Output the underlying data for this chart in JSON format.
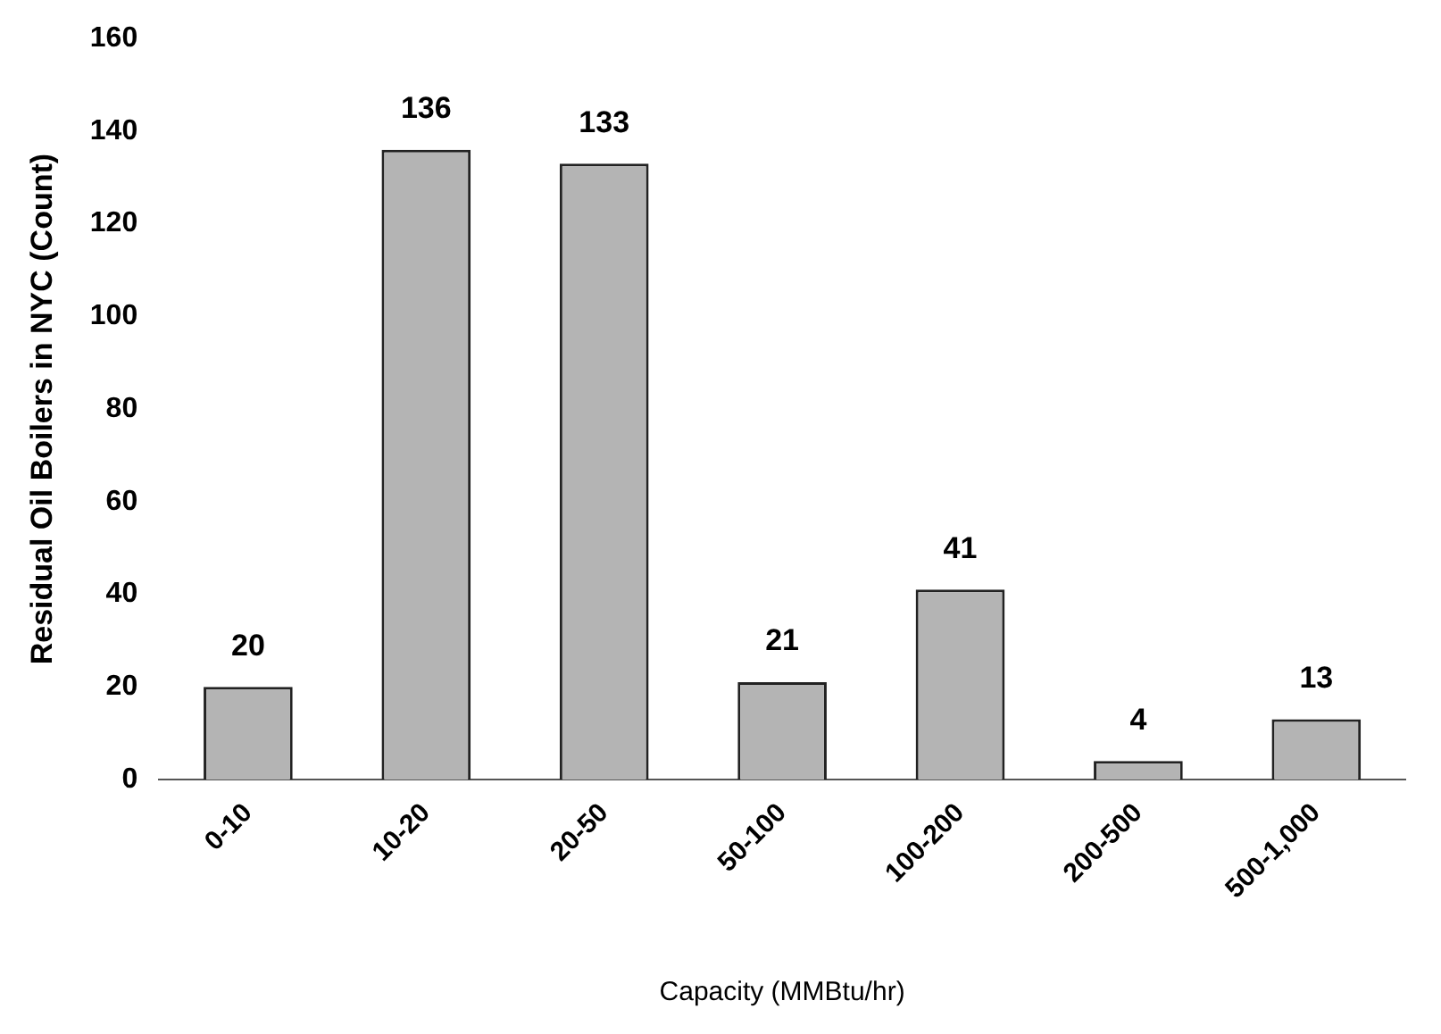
{
  "chart_data": {
    "type": "bar",
    "xlabel": "Capacity (MMBtu/hr)",
    "ylabel": "Residual Oil Boilers in NYC (Count)",
    "categories": [
      "0-10",
      "10-20",
      "20-50",
      "50-100",
      "100-200",
      "200-500",
      "500-1,000"
    ],
    "values": [
      20,
      136,
      133,
      21,
      41,
      4,
      13
    ],
    "color": "#b4b4b4",
    "ylim": [
      0,
      160
    ],
    "yticks": [
      0,
      20,
      40,
      60,
      80,
      100,
      120,
      140,
      160
    ],
    "grid": false,
    "data_labels": true,
    "legend": false
  }
}
